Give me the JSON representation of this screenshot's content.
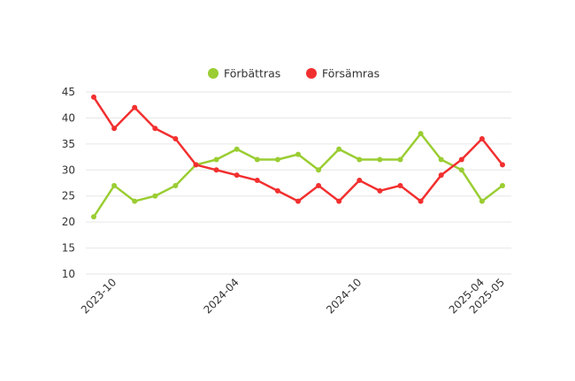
{
  "chart_data": {
    "type": "line",
    "x": [
      "2023-09",
      "2023-10",
      "2023-11",
      "2023-12",
      "2024-01",
      "2024-02",
      "2024-03",
      "2024-04",
      "2024-05",
      "2024-06",
      "2024-07",
      "2024-08",
      "2024-09",
      "2024-10",
      "2024-11",
      "2024-12",
      "2025-01",
      "2025-02",
      "2025-03",
      "2025-04",
      "2025-05"
    ],
    "x_tick_labels": [
      "2023-10",
      "2024-04",
      "2024-10",
      "2025-04",
      "2025-05"
    ],
    "y_tick_labels": [
      "10",
      "15",
      "20",
      "25",
      "30",
      "35",
      "40",
      "45"
    ],
    "ylim": [
      10,
      45
    ],
    "grid": true,
    "legend_position": "top-center",
    "series": [
      {
        "name": "Förbättras",
        "color": "#9ACD32",
        "values": [
          21,
          27,
          24,
          25,
          27,
          31,
          32,
          34,
          32,
          32,
          33,
          30,
          34,
          32,
          32,
          32,
          37,
          32,
          30,
          24,
          27
        ]
      },
      {
        "name": "Försämras",
        "color": "#F22F2F",
        "values": [
          44,
          38,
          42,
          38,
          36,
          31,
          30,
          29,
          28,
          26,
          24,
          27,
          24,
          28,
          26,
          27,
          24,
          29,
          32,
          36,
          31
        ]
      }
    ]
  }
}
